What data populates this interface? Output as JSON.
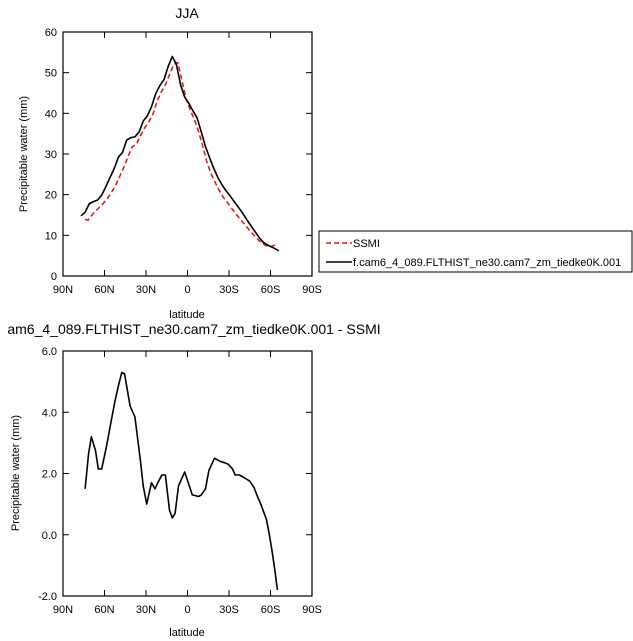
{
  "chart_data": [
    {
      "type": "line",
      "title": "JJA",
      "xlabel": "latitude",
      "ylabel": "Precipitable water (mm)",
      "xlim": [
        90,
        -90
      ],
      "ylim": [
        0,
        60
      ],
      "xticks": [
        90,
        60,
        30,
        0,
        -30,
        -60,
        -90
      ],
      "xtick_labels": [
        "90N",
        "60N",
        "30N",
        "0",
        "30S",
        "60S",
        "90S"
      ],
      "yticks": [
        0,
        10,
        20,
        30,
        40,
        50,
        60
      ],
      "ytick_labels": [
        "0",
        "10",
        "20",
        "30",
        "40",
        "50",
        "60"
      ],
      "legend_position": "right",
      "series": [
        {
          "name": "SSMI",
          "color": "#e41a1c",
          "dash": "dashed",
          "x": [
            74,
            72,
            70,
            67,
            64,
            61,
            58,
            55,
            52,
            49,
            46,
            43,
            40,
            37,
            34,
            31,
            28,
            25,
            22,
            19,
            16,
            13,
            10,
            7,
            4,
            1,
            -2,
            -5,
            -8,
            -11,
            -14,
            -17,
            -20,
            -23,
            -26,
            -29,
            -32,
            -35,
            -38,
            -41,
            -44,
            -47,
            -50,
            -53,
            -56,
            -59,
            -62,
            -65
          ],
          "values": [
            14.0,
            13.7,
            14.6,
            15.8,
            16.8,
            17.8,
            19.0,
            20.5,
            22.3,
            24.5,
            26.8,
            29.3,
            31.8,
            32.3,
            34.5,
            36.4,
            37.9,
            39.8,
            43.0,
            45.2,
            47.0,
            49.5,
            52.0,
            52.5,
            48.0,
            43.5,
            40.8,
            38.5,
            35.5,
            32.0,
            28.0,
            25.2,
            23.0,
            21.0,
            19.3,
            18.0,
            16.6,
            15.3,
            14.0,
            12.8,
            11.6,
            10.4,
            9.3,
            8.3,
            7.6,
            7.2,
            7.4,
            8.0
          ]
        },
        {
          "name": "f.cam6_4_089.FLTHIST_ne30.cam7_zm_tiedke0K.001",
          "color": "#000000",
          "dash": "solid",
          "x": [
            77,
            74,
            71,
            68,
            65,
            62,
            59,
            56,
            53,
            50,
            47,
            44,
            41,
            38,
            35,
            32,
            29,
            26,
            23,
            20,
            17,
            14,
            11,
            8,
            5,
            2,
            -1,
            -4,
            -7,
            -10,
            -13,
            -16,
            -19,
            -22,
            -25,
            -28,
            -31,
            -34,
            -37,
            -40,
            -43,
            -46,
            -49,
            -52,
            -55,
            -58,
            -61,
            -64,
            -66
          ],
          "values": [
            14.8,
            15.7,
            17.8,
            18.3,
            18.7,
            19.9,
            22.0,
            24.2,
            26.4,
            29.2,
            30.4,
            33.4,
            34.0,
            34.2,
            35.4,
            38.1,
            39.4,
            41.6,
            44.8,
            46.8,
            48.3,
            51.5,
            54.0,
            52.0,
            47.0,
            44.0,
            42.4,
            40.6,
            38.8,
            35.4,
            31.8,
            29.1,
            26.4,
            24.2,
            22.4,
            20.9,
            19.6,
            18.2,
            16.8,
            15.4,
            13.8,
            12.3,
            10.8,
            9.4,
            8.2,
            7.6,
            7.1,
            6.6,
            6.2
          ]
        }
      ]
    },
    {
      "type": "line",
      "title": "am6_4_089.FLTHIST_ne30.cam7_zm_tiedke0K.001 - SSMI",
      "xlabel": "latitude",
      "ylabel": "Precipitable water (mm)",
      "xlim": [
        90,
        -90
      ],
      "ylim": [
        -2,
        6
      ],
      "xticks": [
        90,
        60,
        30,
        0,
        -30,
        -60,
        -90
      ],
      "xtick_labels": [
        "90N",
        "60N",
        "30N",
        "0",
        "30S",
        "60S",
        "90S"
      ],
      "yticks": [
        -2,
        0,
        2,
        4,
        6
      ],
      "ytick_labels": [
        "-2.0",
        "0.0",
        "2.0",
        "4.0",
        "6.0"
      ],
      "series": [
        {
          "color": "#000000",
          "dash": "solid",
          "x": [
            74,
            71.5,
            69.5,
            66.5,
            64.5,
            62,
            58.5,
            55,
            52.5,
            50,
            47.5,
            45.5,
            41.5,
            38,
            34,
            32,
            29.5,
            26,
            23.5,
            21.5,
            18.5,
            16,
            13,
            11,
            9,
            6.5,
            2,
            -3.5,
            -8,
            -10,
            -13,
            -15.5,
            -19.5,
            -23.5,
            -27,
            -29.5,
            -32.5,
            -34.5,
            -37.5,
            -41.5,
            -45,
            -48,
            -51,
            -53,
            -55,
            -57,
            -59,
            -61,
            -63,
            -65
          ],
          "values": [
            1.5,
            2.65,
            3.2,
            2.75,
            2.15,
            2.15,
            2.9,
            3.75,
            4.35,
            4.85,
            5.3,
            5.25,
            4.2,
            3.85,
            2.4,
            1.6,
            1.0,
            1.7,
            1.5,
            1.7,
            1.95,
            1.95,
            0.8,
            0.55,
            0.7,
            1.6,
            2.05,
            1.3,
            1.25,
            1.3,
            1.5,
            2.1,
            2.5,
            2.4,
            2.35,
            2.3,
            2.15,
            1.95,
            1.95,
            1.85,
            1.75,
            1.55,
            1.2,
            1.0,
            0.75,
            0.5,
            0.05,
            -0.5,
            -1.1,
            -1.8
          ]
        }
      ]
    }
  ]
}
